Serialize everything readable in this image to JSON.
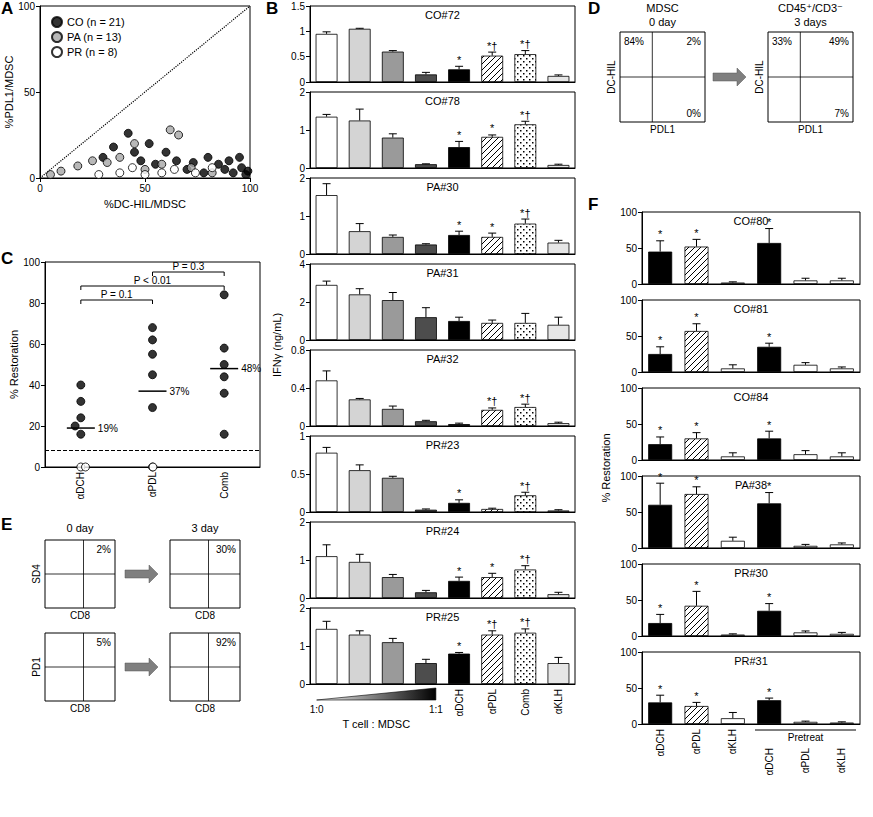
{
  "chart_data": [
    {
      "label": "A",
      "type": "scatter",
      "xlabel": "%DC-HIL/MDSC",
      "ylabel": "%PDL1/MDSC",
      "xlim": [
        0,
        100
      ],
      "ylim": [
        0,
        100
      ],
      "xticks": [
        0,
        50,
        100
      ],
      "yticks": [
        0,
        50,
        100
      ],
      "legend": "upper left",
      "diagonal": {
        "line_style": "dotted"
      },
      "series": [
        {
          "name": "CO (n = 21)",
          "color": "#000000",
          "marker": "circle",
          "values": [
            [
              30,
              12
            ],
            [
              35,
              18
            ],
            [
              42,
              26
            ],
            [
              45,
              15
            ],
            [
              48,
              10
            ],
            [
              52,
              20
            ],
            [
              55,
              8
            ],
            [
              60,
              15
            ],
            [
              65,
              10
            ],
            [
              70,
              5
            ],
            [
              73,
              9
            ],
            [
              78,
              3
            ],
            [
              80,
              12
            ],
            [
              85,
              8
            ],
            [
              88,
              5
            ],
            [
              90,
              10
            ],
            [
              92,
              3
            ],
            [
              95,
              12
            ],
            [
              96,
              6
            ],
            [
              98,
              2
            ],
            [
              99,
              4
            ]
          ]
        },
        {
          "name": "PA (n = 13)",
          "color": "#a6a6a6",
          "marker": "circle",
          "values": [
            [
              5,
              2
            ],
            [
              10,
              4
            ],
            [
              18,
              7
            ],
            [
              25,
              10
            ],
            [
              32,
              9
            ],
            [
              38,
              12
            ],
            [
              45,
              20
            ],
            [
              50,
              5
            ],
            [
              58,
              8
            ],
            [
              62,
              28
            ],
            [
              66,
              25
            ],
            [
              72,
              6
            ],
            [
              82,
              3
            ]
          ]
        },
        {
          "name": "PR (n = 8)",
          "color": "#ffffff",
          "marker": "circle",
          "values": [
            [
              28,
              2
            ],
            [
              38,
              3
            ],
            [
              44,
              6
            ],
            [
              50,
              2
            ],
            [
              58,
              3
            ],
            [
              64,
              5
            ],
            [
              74,
              3
            ],
            [
              82,
              6
            ]
          ]
        }
      ]
    },
    {
      "label": "B",
      "type": "bar",
      "ylabel": "IFNγ (ng/mL)",
      "categories": [
        null,
        null,
        null,
        null,
        "αDCH",
        "αPDL",
        "Comb",
        "αKLH"
      ],
      "colors": [
        "#ffffff",
        "#d4d4d4",
        "#9a9a9a",
        "#4d4d4d",
        "#000000",
        "#ffffff",
        "#ffffff",
        "#e6e6e6"
      ],
      "ratio_labels": [
        "1:0",
        "1:1"
      ],
      "ratio_title": "T cell : MDSC",
      "panels": [
        {
          "title": "CO#72",
          "ylim": [
            0,
            1.5
          ],
          "yticks": [
            0,
            0.5,
            1,
            1.5
          ],
          "tick_labels": "y",
          "values": [
            0.95,
            1.05,
            0.6,
            0.15,
            0.25,
            0.52,
            0.55,
            0.12
          ],
          "errors": [
            0.04,
            0.01,
            0.02,
            0.04,
            0.06,
            0.07,
            0.07,
            0.02
          ],
          "significance": [
            null,
            null,
            null,
            null,
            "*",
            "*†",
            "*†",
            null
          ]
        },
        {
          "title": "CO#78",
          "ylim": [
            0,
            2
          ],
          "yticks": [
            0,
            1,
            2
          ],
          "tick_labels": "y",
          "values": [
            1.35,
            1.25,
            0.8,
            0.1,
            0.55,
            0.82,
            1.15,
            0.08
          ],
          "errors": [
            0.06,
            0.3,
            0.1,
            0.01,
            0.15,
            0.05,
            0.08,
            0.02
          ],
          "significance": [
            null,
            null,
            null,
            null,
            "*",
            "*",
            "*†",
            null
          ]
        },
        {
          "title": "PA#30",
          "ylim": [
            0,
            2
          ],
          "yticks": [
            0,
            1,
            2
          ],
          "tick_labels": "y",
          "values": [
            1.55,
            0.6,
            0.45,
            0.25,
            0.5,
            0.45,
            0.8,
            0.3
          ],
          "errors": [
            0.3,
            0.2,
            0.05,
            0.02,
            0.1,
            0.1,
            0.12,
            0.06
          ],
          "significance": [
            null,
            null,
            null,
            null,
            "*",
            "*",
            "*†",
            null
          ]
        },
        {
          "title": "PA#31",
          "ylim": [
            0,
            4
          ],
          "yticks": [
            0,
            2,
            4
          ],
          "tick_labels": "y",
          "values": [
            2.9,
            2.4,
            2.1,
            1.2,
            1,
            0.9,
            0.9,
            0.8
          ],
          "errors": [
            0.2,
            0.3,
            0.4,
            0.5,
            0.2,
            0.15,
            0.5,
            0.4
          ],
          "significance": [
            null,
            null,
            null,
            null,
            null,
            null,
            null,
            null
          ]
        },
        {
          "title": "PA#32",
          "ylim": [
            0,
            0.8
          ],
          "yticks": [
            0,
            0.4,
            0.8
          ],
          "tick_labels": "y",
          "values": [
            0.48,
            0.28,
            0.18,
            0.05,
            0.02,
            0.17,
            0.2,
            0.03
          ],
          "errors": [
            0.1,
            0.01,
            0.03,
            0.01,
            0.01,
            0.02,
            0.03,
            0.01
          ],
          "significance": [
            null,
            null,
            null,
            null,
            null,
            "*†",
            "*†",
            null
          ]
        },
        {
          "title": "PR#23",
          "ylim": [
            0,
            1
          ],
          "yticks": [
            0,
            0.5,
            1
          ],
          "tick_labels": "y",
          "values": [
            0.78,
            0.55,
            0.45,
            0.03,
            0.12,
            0.04,
            0.22,
            0.02
          ],
          "errors": [
            0.07,
            0.07,
            0.02,
            0.01,
            0.04,
            0.01,
            0.04,
            0.01
          ],
          "significance": [
            null,
            null,
            null,
            null,
            "*",
            null,
            "*†",
            null
          ]
        },
        {
          "title": "PR#24",
          "ylim": [
            0,
            2
          ],
          "yticks": [
            0,
            1,
            2
          ],
          "tick_labels": "y",
          "values": [
            1.1,
            0.95,
            0.55,
            0.15,
            0.45,
            0.55,
            0.75,
            0.1
          ],
          "errors": [
            0.3,
            0.2,
            0.07,
            0.05,
            0.1,
            0.1,
            0.1,
            0.05
          ],
          "significance": [
            null,
            null,
            null,
            null,
            "*",
            "*",
            "*†",
            null
          ]
        },
        {
          "title": "PR#25",
          "ylim": [
            0,
            2
          ],
          "yticks": [
            0,
            1,
            2
          ],
          "values": [
            1.45,
            1.3,
            1.1,
            0.55,
            0.8,
            1.3,
            1.35,
            0.55
          ],
          "errors": [
            0.2,
            0.1,
            0.1,
            0.1,
            0.03,
            0.1,
            0.1,
            0.15
          ],
          "significance": [
            null,
            null,
            null,
            null,
            "*",
            "*†",
            "*†",
            null
          ]
        }
      ]
    },
    {
      "label": "C",
      "type": "scatter",
      "ylabel": "% Restoration",
      "categories": [
        "αDCH",
        "αPDL",
        "Comb"
      ],
      "ylim": [
        0,
        100
      ],
      "yticks": [
        0,
        20,
        40,
        60,
        80,
        100
      ],
      "series": [
        {
          "color": "#000000",
          "marker": "circle",
          "values": [
            [
              40,
              32,
              24,
              20,
              16
            ],
            [
              68,
              62,
              55,
              45,
              29
            ],
            [
              84,
              58,
              50,
              44,
              36,
              16
            ]
          ]
        },
        {
          "color": "#ffffff",
          "marker": "circle",
          "values": [
            [
              0,
              0
            ],
            [
              0,
              0
            ],
            []
          ]
        }
      ],
      "means": [
        {
          "value": 19,
          "label": "19%"
        },
        {
          "value": 37,
          "label": "37%"
        },
        {
          "value": 48,
          "label": "48%"
        }
      ],
      "threshold": {
        "value": 8,
        "line_style": "dashed"
      },
      "comparisons": [
        {
          "categories": [
            "αDCH",
            "αPDL"
          ],
          "label": "P = 0.1"
        },
        {
          "categories": [
            "αDCH",
            "Comb"
          ],
          "label": "P < 0.01"
        },
        {
          "categories": [
            "αPDL",
            "Comb"
          ],
          "label": "P = 0.3"
        }
      ]
    },
    {
      "label": "D",
      "type": "flow",
      "plots": [
        {
          "title": "MDSC",
          "subtitle": "0 day",
          "xlabel": "PDL1",
          "ylabel": "DC-HIL",
          "quadrants": {
            "upper_left": "84%",
            "upper_right": "2%",
            "lower_right": "0%"
          }
        },
        {
          "title": "CD45⁺/CD3⁻",
          "subtitle": "3 days",
          "xlabel": "PDL1",
          "ylabel": "DC-HIL",
          "quadrants": {
            "upper_left": "33%",
            "upper_right": "49%",
            "lower_right": "7%"
          }
        }
      ]
    },
    {
      "label": "E",
      "type": "flow",
      "columns": [
        "0 day",
        "3 day"
      ],
      "rows": [
        {
          "xlabel": "CD8",
          "ylabel": "SD4",
          "quadrants": [
            {
              "upper_right": "2%"
            },
            {
              "upper_right": "30%"
            }
          ]
        },
        {
          "xlabel": "CD8",
          "ylabel": "PD1",
          "quadrants": [
            {
              "upper_right": "5%"
            },
            {
              "upper_right": "92%"
            }
          ]
        }
      ]
    },
    {
      "label": "F",
      "type": "bar",
      "ylabel": "% Restoration",
      "groups": [
        {
          "label": null,
          "categories": [
            "αDCH",
            "αPDL",
            "αKLH"
          ]
        },
        {
          "label": "Pretreat",
          "categories": [
            "αDCH",
            "αPDL",
            "αKLH"
          ]
        }
      ],
      "colors": [
        "#000000",
        "#ffffff",
        "#ffffff",
        "#000000",
        "#ffffff",
        "#ffffff"
      ],
      "ylim": [
        0,
        100
      ],
      "yticks": [
        0,
        50,
        100
      ],
      "panels": [
        {
          "title": "CO#80",
          "tick_labels": "y",
          "values": [
            45,
            52,
            2,
            57,
            5,
            5
          ],
          "errors": [
            15,
            10,
            1,
            20,
            3,
            3
          ],
          "significance": [
            "*",
            "*",
            null,
            "*",
            null,
            null
          ]
        },
        {
          "title": "CO#81",
          "tick_labels": "y",
          "values": [
            25,
            57,
            5,
            35,
            10,
            5
          ],
          "errors": [
            10,
            10,
            5,
            5,
            3,
            2
          ],
          "significance": [
            "*",
            "*",
            null,
            "*",
            null,
            null
          ]
        },
        {
          "title": "CO#84",
          "tick_labels": "y",
          "values": [
            22,
            30,
            5,
            30,
            8,
            5
          ],
          "errors": [
            10,
            8,
            5,
            10,
            5,
            5
          ],
          "significance": [
            "*",
            "*",
            null,
            "*",
            null,
            null
          ]
        },
        {
          "title": "PA#38",
          "tick_labels": "y",
          "values": [
            60,
            75,
            10,
            62,
            3,
            5
          ],
          "errors": [
            30,
            10,
            5,
            15,
            2,
            2
          ],
          "significance": [
            "*",
            "*",
            null,
            "*",
            null,
            null
          ]
        },
        {
          "title": "PR#30",
          "tick_labels": "y",
          "values": [
            18,
            42,
            2,
            35,
            5,
            3
          ],
          "errors": [
            12,
            20,
            1,
            10,
            2,
            2
          ],
          "significance": [
            "*",
            "*",
            null,
            "*",
            null,
            null
          ]
        },
        {
          "title": "PR#31",
          "tick_labels": "y",
          "values": [
            30,
            25,
            8,
            33,
            3,
            2
          ],
          "errors": [
            10,
            5,
            8,
            3,
            1,
            1
          ],
          "significance": [
            "*",
            "*",
            null,
            "*",
            null,
            null
          ]
        }
      ]
    }
  ]
}
